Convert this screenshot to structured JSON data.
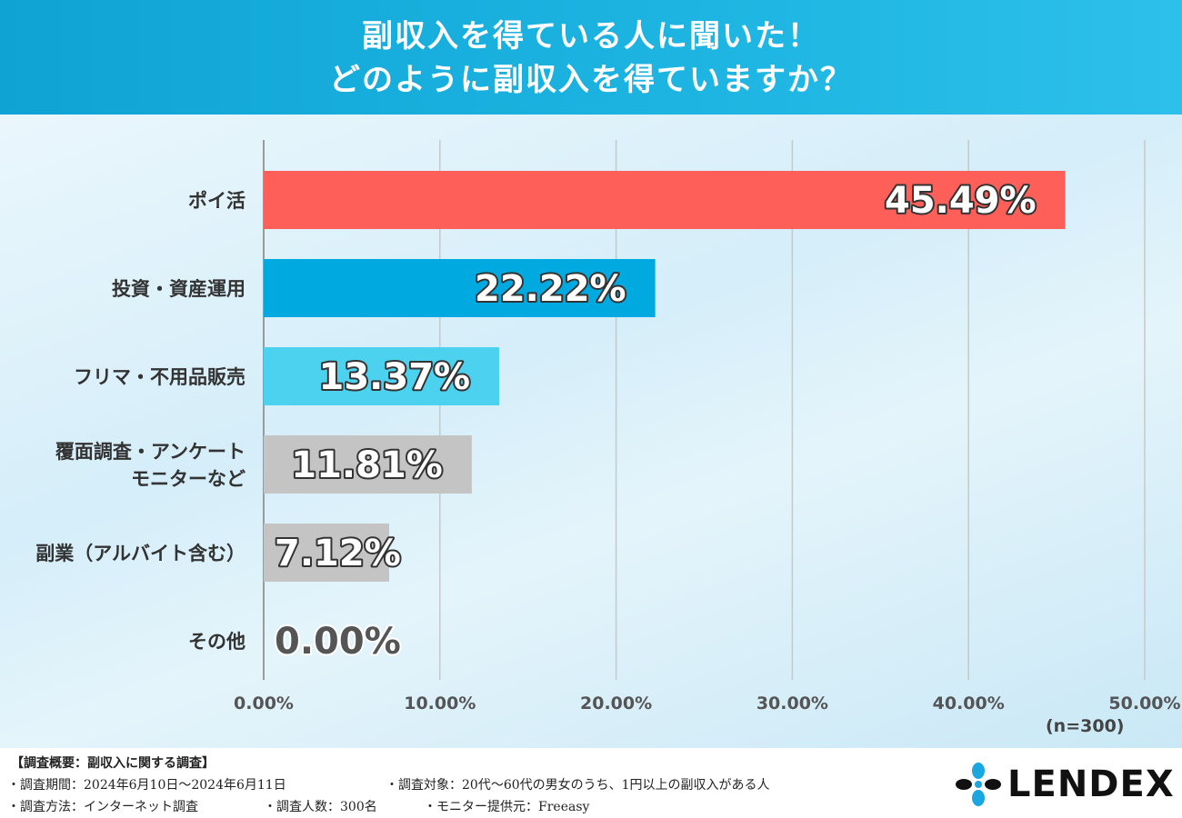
{
  "title": {
    "line1": "副収入を得ている人に聞いた！",
    "line2": "どのように副収入を得ていますか？"
  },
  "chart_data": {
    "type": "bar",
    "orientation": "horizontal",
    "categories": [
      [
        "ポイ活"
      ],
      [
        "投資・資産運用"
      ],
      [
        "フリマ・不用品販売"
      ],
      [
        "覆面調査・アンケート",
        "モニターなど"
      ],
      [
        "副業（アルバイト含む）"
      ],
      [
        "その他"
      ]
    ],
    "values": [
      45.49,
      22.22,
      13.37,
      11.81,
      7.12,
      0.0
    ],
    "value_labels": [
      "45.49%",
      "22.22%",
      "13.37%",
      "11.81%",
      "7.12%",
      "0.00%"
    ],
    "bar_colors": [
      "#fe5f58",
      "#00a9e0",
      "#4cd1ee",
      "#c4c4c4",
      "#c4c4c4",
      "#c4c4c4"
    ],
    "label_fill": [
      "#ffffff",
      "#ffffff",
      "#ffffff",
      "#ffffff",
      "#ffffff",
      "#555555"
    ],
    "label_stroke": [
      "#333333",
      "#333333",
      "#333333",
      "#333333",
      "#333333",
      "#ffffff"
    ],
    "xlim": [
      0,
      50
    ],
    "xticks": [
      "0.00%",
      "10.00%",
      "20.00%",
      "30.00%",
      "40.00%",
      "50.00%"
    ],
    "grid": true,
    "note": "(n=300)"
  },
  "footer": {
    "heading": "【調査概要：副収入に関する調査】",
    "period": "・調査期間：2024年6月10日～2024年6月11日",
    "target": "・調査対象：20代～60代の男女のうち、1円以上の副収入がある人",
    "method": "・調査方法：インターネット調査",
    "count": "・調査人数：300名",
    "provider": "・モニター提供元：Freeasy"
  },
  "logo": {
    "text": "LENDEX",
    "icon_color": "#1aa7e0",
    "icon": "lendex-logo-icon"
  }
}
